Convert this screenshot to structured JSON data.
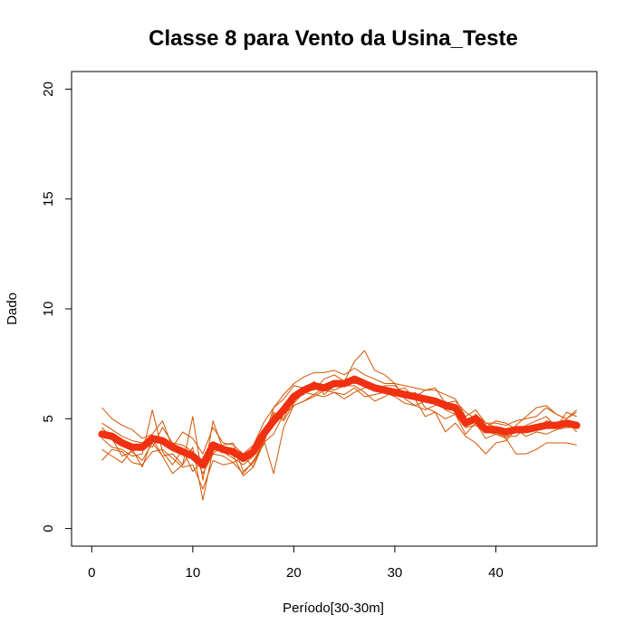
{
  "chart_data": {
    "type": "line",
    "title": "Classe  8 para Vento da Usina_Teste",
    "xlabel": "Período[30-30m]",
    "ylabel": "Dado",
    "xlim": [
      -2,
      50
    ],
    "ylim": [
      -0.8,
      20.8
    ],
    "xticks": [
      0,
      10,
      20,
      30,
      40
    ],
    "yticks": [
      0,
      5,
      10,
      15,
      20
    ],
    "grid": false,
    "colors": {
      "thin": "#d35400",
      "mean": "#f03010"
    },
    "x": [
      1,
      2,
      3,
      4,
      5,
      6,
      7,
      8,
      9,
      10,
      11,
      12,
      13,
      14,
      15,
      16,
      17,
      18,
      19,
      20,
      21,
      22,
      23,
      24,
      25,
      26,
      27,
      28,
      29,
      30,
      31,
      32,
      33,
      34,
      35,
      36,
      37,
      38,
      39,
      40,
      41,
      42,
      43,
      44,
      45,
      46,
      47,
      48
    ],
    "series": [
      {
        "role": "mean",
        "values": [
          4.3,
          4.2,
          3.9,
          3.7,
          3.7,
          4.1,
          4.0,
          3.7,
          3.5,
          3.3,
          2.9,
          3.8,
          3.6,
          3.5,
          3.2,
          3.5,
          4.3,
          4.9,
          5.4,
          6.0,
          6.3,
          6.5,
          6.4,
          6.6,
          6.6,
          6.8,
          6.6,
          6.4,
          6.3,
          6.2,
          6.1,
          6.0,
          5.9,
          5.8,
          5.6,
          5.5,
          4.8,
          5.0,
          4.5,
          4.5,
          4.4,
          4.5,
          4.5,
          4.6,
          4.7,
          4.7,
          4.8,
          4.7
        ]
      },
      {
        "values": [
          5.5,
          5.0,
          4.7,
          4.5,
          4.1,
          4.3,
          4.9,
          3.7,
          4.4,
          4.1,
          3.4,
          4.6,
          3.9,
          3.8,
          3.4,
          3.8,
          4.8,
          5.5,
          6.1,
          6.6,
          6.9,
          7.1,
          7.1,
          7.2,
          7.0,
          7.3,
          7.0,
          6.8,
          6.6,
          6.6,
          6.5,
          6.4,
          6.3,
          6.3,
          6.1,
          5.9,
          5.1,
          5.4,
          4.8,
          4.8,
          4.7,
          4.9,
          5.0,
          5.1,
          5.5,
          5.2,
          5.0,
          5.3
        ]
      },
      {
        "values": [
          4.8,
          4.5,
          4.2,
          4.0,
          3.9,
          3.7,
          4.6,
          3.9,
          3.8,
          3.5,
          2.5,
          3.4,
          3.8,
          3.9,
          2.6,
          3.0,
          4.0,
          5.5,
          5.9,
          6.5,
          6.4,
          6.3,
          6.8,
          7.0,
          6.7,
          7.6,
          8.1,
          7.2,
          7.0,
          6.6,
          5.9,
          5.6,
          5.4,
          5.6,
          5.8,
          5.4,
          4.7,
          5.2,
          4.8,
          4.6,
          4.1,
          4.7,
          5.1,
          5.5,
          5.6,
          5.2,
          5.0,
          5.4
        ]
      },
      {
        "values": [
          3.1,
          3.6,
          3.5,
          3.0,
          2.9,
          3.5,
          3.6,
          3.2,
          2.8,
          2.9,
          1.8,
          3.1,
          2.9,
          3.0,
          2.5,
          3.1,
          3.8,
          5.3,
          4.9,
          5.7,
          6.2,
          6.1,
          6.4,
          6.3,
          6.5,
          6.5,
          6.2,
          5.8,
          6.0,
          6.3,
          6.4,
          5.9,
          5.1,
          5.3,
          4.4,
          4.8,
          4.2,
          3.9,
          3.4,
          3.9,
          4.0,
          4.5,
          4.2,
          4.4,
          4.3,
          4.5,
          4.6,
          4.6
        ]
      },
      {
        "values": [
          4.1,
          3.7,
          3.6,
          3.3,
          3.4,
          5.4,
          3.5,
          2.9,
          3.6,
          2.6,
          3.1,
          3.4,
          3.3,
          3.0,
          3.3,
          2.8,
          3.9,
          4.3,
          5.2,
          5.6,
          5.8,
          6.0,
          6.3,
          6.2,
          6.1,
          6.4,
          6.0,
          6.1,
          6.2,
          6.0,
          5.7,
          5.6,
          5.8,
          5.9,
          5.4,
          5.2,
          4.6,
          4.7,
          4.4,
          4.3,
          4.2,
          4.2,
          4.6,
          4.5,
          4.9,
          4.8,
          4.9,
          4.4
        ]
      },
      {
        "values": [
          4.6,
          4.1,
          3.3,
          3.5,
          3.1,
          3.9,
          3.3,
          2.5,
          2.9,
          3.7,
          1.3,
          3.6,
          3.5,
          3.2,
          2.9,
          3.3,
          4.1,
          2.5,
          4.6,
          5.6,
          5.8,
          6.1,
          6.0,
          6.2,
          5.9,
          6.2,
          6.4,
          6.5,
          6.3,
          6.1,
          6.0,
          6.2,
          5.5,
          5.3,
          5.0,
          5.2,
          4.3,
          4.8,
          4.1,
          4.3,
          4.1,
          3.4,
          3.4,
          3.6,
          3.9,
          3.9,
          3.9,
          3.8
        ]
      },
      {
        "values": [
          3.6,
          3.3,
          3.0,
          3.6,
          2.8,
          4.1,
          3.3,
          3.4,
          2.9,
          5.1,
          2.2,
          4.9,
          3.6,
          3.3,
          2.4,
          2.8,
          4.1,
          5.2,
          5.0,
          6.0,
          6.1,
          6.7,
          6.1,
          6.5,
          6.7,
          6.6,
          6.7,
          6.3,
          6.5,
          6.5,
          6.1,
          6.0,
          6.3,
          6.4,
          5.7,
          5.8,
          5.3,
          5.0,
          4.6,
          4.9,
          4.8,
          4.5,
          4.7,
          4.9,
          5.1,
          4.6,
          5.3,
          5.1
        ]
      }
    ]
  }
}
